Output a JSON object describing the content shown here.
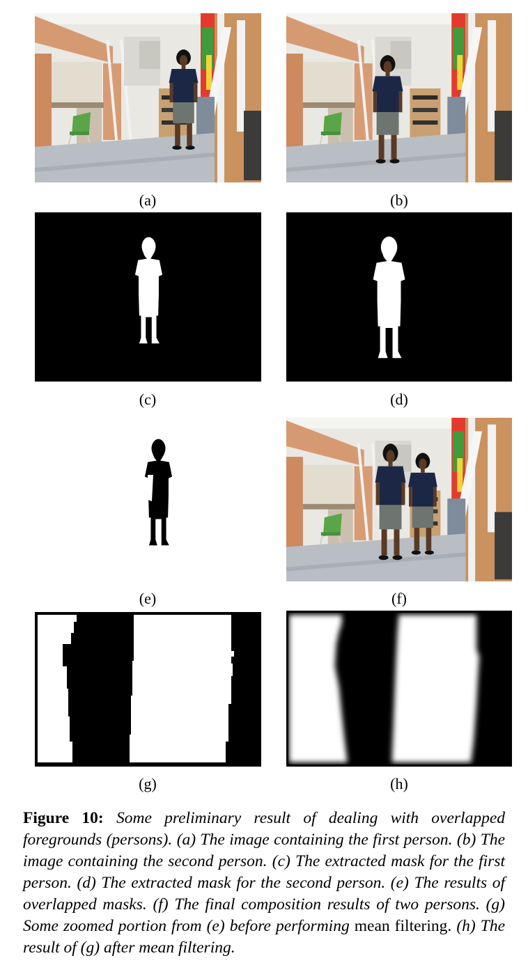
{
  "panels": {
    "a": {
      "label": "(a)",
      "content": "photo",
      "persons": "first"
    },
    "b": {
      "label": "(b)",
      "content": "photo",
      "persons": "second"
    },
    "c": {
      "label": "(c)",
      "content": "binary mask, white person on black"
    },
    "d": {
      "label": "(d)",
      "content": "binary mask, white person on black"
    },
    "e": {
      "label": "(e)",
      "content": "black silhouette on white"
    },
    "f": {
      "label": "(f)",
      "content": "photo",
      "persons": "both"
    },
    "g": {
      "label": "(g)",
      "content": "zoomed binary mask"
    },
    "h": {
      "label": "(h)",
      "content": "zoomed blurred mask"
    }
  },
  "caption": {
    "figure_label": "Figure 10:",
    "text_1": "Some preliminary result of dealing with overlapped foregrounds (persons). (a) The image containing the first person. (b) The image containing the second person. (c) The extracted mask for the first person. (d) The extracted mask for the second person. (e) The results of overlapped masks. (f) The final composition results of two persons. (g) Some zoomed portion from (e) before performing",
    "upright": "mean filtering.",
    "text_2": "(h) The result of (g) after mean filtering."
  },
  "colors": {
    "cabinet": "#d69a72",
    "wall": "#e9e8e3",
    "floor": "#b8bec4",
    "shirt": "#1c2746",
    "shorts": "#6c7570",
    "chair": "#5aa548",
    "mask_black": "#000000",
    "mask_white": "#ffffff"
  }
}
